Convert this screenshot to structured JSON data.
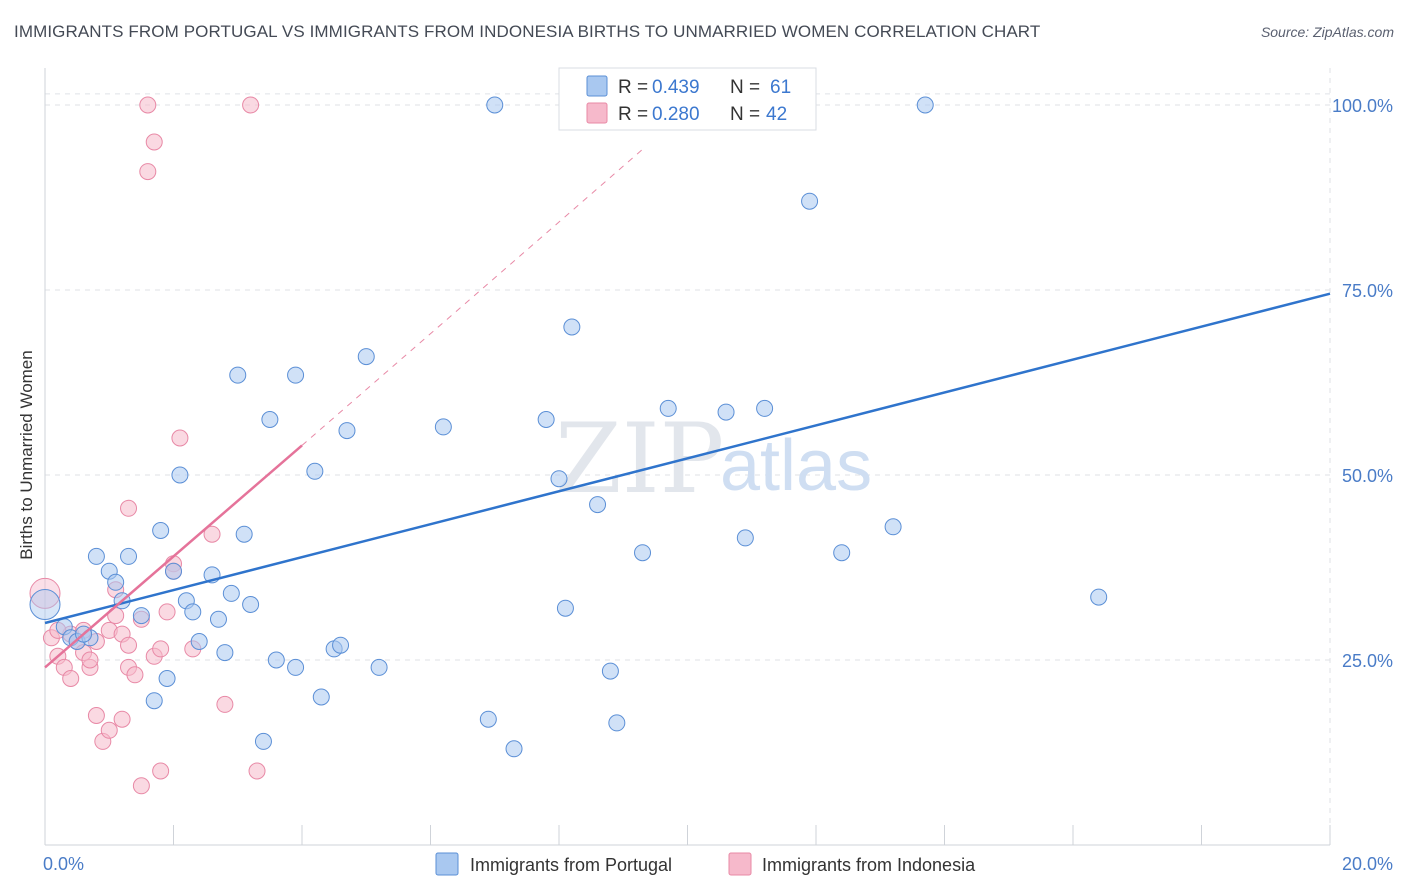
{
  "title": "IMMIGRANTS FROM PORTUGAL VS IMMIGRANTS FROM INDONESIA BIRTHS TO UNMARRIED WOMEN CORRELATION CHART",
  "source": "Source: ZipAtlas.com",
  "watermark": {
    "zip": "ZIP",
    "atlas": "atlas"
  },
  "colors": {
    "portugal_fill": "#a9c8f0",
    "portugal_stroke": "#5b8fd6",
    "portugal_line": "#2f74cc",
    "indonesia_fill": "#f6b9cb",
    "indonesia_stroke": "#e889a6",
    "indonesia_line": "#e5739a",
    "tick_text": "#4a7cc7",
    "grid": "#dfe2e6"
  },
  "legend": {
    "r_label": "R =",
    "n_label": "N =",
    "portugal_r": "0.439",
    "portugal_n": "61",
    "indonesia_r": "0.280",
    "indonesia_n": "42"
  },
  "chart_data": {
    "type": "scatter",
    "title": "IMMIGRANTS FROM PORTUGAL VS IMMIGRANTS FROM INDONESIA BIRTHS TO UNMARRIED WOMEN CORRELATION CHART",
    "xlabel": "",
    "ylabel": "Births to Unmarried Women",
    "xlim": [
      0,
      20
    ],
    "ylim": [
      0,
      105
    ],
    "x_tick_labels": [
      "0.0%",
      "20.0%"
    ],
    "y_ticks": [
      25,
      50,
      75,
      100
    ],
    "y_tick_labels": [
      "25.0%",
      "50.0%",
      "75.0%",
      "100.0%"
    ],
    "grid": true,
    "legend_position": "top-center",
    "series": [
      {
        "name": "Immigrants from Portugal",
        "r": 0.439,
        "n": 61,
        "trend": {
          "x0": 0.0,
          "y0": 30.0,
          "x1": 20.0,
          "y1": 74.5
        },
        "points": [
          [
            0.0,
            32.5
          ],
          [
            0.3,
            29.5
          ],
          [
            0.4,
            28.0
          ],
          [
            0.5,
            27.5
          ],
          [
            0.7,
            28.0
          ],
          [
            0.8,
            39.0
          ],
          [
            1.0,
            37.0
          ],
          [
            1.1,
            35.5
          ],
          [
            1.2,
            33.0
          ],
          [
            1.3,
            39.0
          ],
          [
            1.5,
            31.0
          ],
          [
            1.7,
            19.5
          ],
          [
            1.8,
            42.5
          ],
          [
            1.9,
            22.5
          ],
          [
            2.0,
            37.0
          ],
          [
            2.1,
            50.0
          ],
          [
            2.2,
            33.0
          ],
          [
            2.3,
            31.5
          ],
          [
            2.4,
            27.5
          ],
          [
            2.6,
            36.5
          ],
          [
            2.7,
            30.5
          ],
          [
            2.8,
            26.0
          ],
          [
            2.9,
            34.0
          ],
          [
            3.0,
            63.5
          ],
          [
            3.1,
            42.0
          ],
          [
            3.2,
            32.5
          ],
          [
            3.4,
            14.0
          ],
          [
            3.5,
            57.5
          ],
          [
            3.6,
            25.0
          ],
          [
            3.9,
            24.0
          ],
          [
            3.9,
            63.5
          ],
          [
            4.2,
            50.5
          ],
          [
            4.3,
            20.0
          ],
          [
            4.5,
            26.5
          ],
          [
            4.6,
            27.0
          ],
          [
            4.7,
            56.0
          ],
          [
            5.0,
            66.0
          ],
          [
            5.2,
            24.0
          ],
          [
            6.2,
            56.5
          ],
          [
            6.9,
            17.0
          ],
          [
            7.0,
            100.0
          ],
          [
            7.3,
            13.0
          ],
          [
            7.8,
            57.5
          ],
          [
            8.0,
            49.5
          ],
          [
            8.1,
            32.0
          ],
          [
            8.2,
            70.0
          ],
          [
            8.6,
            46.0
          ],
          [
            8.8,
            23.5
          ],
          [
            8.9,
            16.5
          ],
          [
            9.3,
            39.5
          ],
          [
            9.7,
            59.0
          ],
          [
            10.6,
            58.5
          ],
          [
            10.9,
            41.5
          ],
          [
            11.2,
            59.0
          ],
          [
            11.7,
            100.0
          ],
          [
            11.9,
            87.0
          ],
          [
            12.4,
            39.5
          ],
          [
            13.2,
            43.0
          ],
          [
            13.7,
            100.0
          ],
          [
            16.4,
            33.5
          ],
          [
            0.6,
            28.5
          ]
        ]
      },
      {
        "name": "Immigrants from Indonesia",
        "r": 0.28,
        "n": 42,
        "trend": {
          "x0": 0.0,
          "y0": 24.0,
          "x1": 4.0,
          "y1": 54.0
        },
        "trend_extension": {
          "x0": 4.0,
          "y0": 54.0,
          "x1": 9.3,
          "y1": 94.0
        },
        "points": [
          [
            0.0,
            34.0
          ],
          [
            0.1,
            28.0
          ],
          [
            0.2,
            25.5
          ],
          [
            0.3,
            24.0
          ],
          [
            0.4,
            28.5
          ],
          [
            0.4,
            22.5
          ],
          [
            0.5,
            27.5
          ],
          [
            0.6,
            26.0
          ],
          [
            0.6,
            29.0
          ],
          [
            0.7,
            24.0
          ],
          [
            0.7,
            25.0
          ],
          [
            0.8,
            17.5
          ],
          [
            0.8,
            27.5
          ],
          [
            0.9,
            14.0
          ],
          [
            1.0,
            29.0
          ],
          [
            1.0,
            15.5
          ],
          [
            1.1,
            34.5
          ],
          [
            1.1,
            31.0
          ],
          [
            1.2,
            28.5
          ],
          [
            1.2,
            17.0
          ],
          [
            1.3,
            27.0
          ],
          [
            1.3,
            24.0
          ],
          [
            1.3,
            45.5
          ],
          [
            1.4,
            23.0
          ],
          [
            1.5,
            30.5
          ],
          [
            1.5,
            8.0
          ],
          [
            1.6,
            100.0
          ],
          [
            1.6,
            91.0
          ],
          [
            1.7,
            95.0
          ],
          [
            1.7,
            25.5
          ],
          [
            1.8,
            26.5
          ],
          [
            1.8,
            10.0
          ],
          [
            1.9,
            31.5
          ],
          [
            2.0,
            38.0
          ],
          [
            2.0,
            37.0
          ],
          [
            2.1,
            55.0
          ],
          [
            2.3,
            26.5
          ],
          [
            2.6,
            42.0
          ],
          [
            2.8,
            19.0
          ],
          [
            3.2,
            100.0
          ],
          [
            3.3,
            10.0
          ],
          [
            0.2,
            29.0
          ]
        ]
      }
    ]
  },
  "bottom_legend": {
    "portugal": "Immigrants from Portugal",
    "indonesia": "Immigrants from Indonesia"
  }
}
